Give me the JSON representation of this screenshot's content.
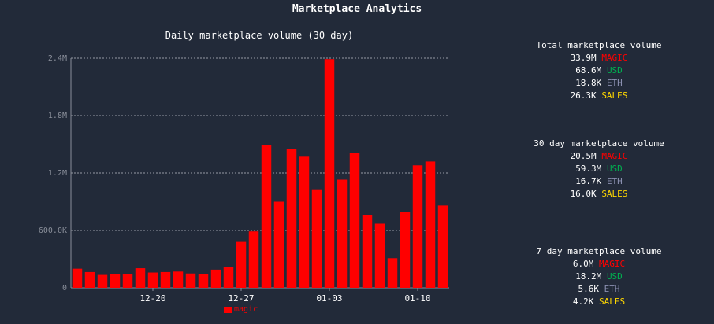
{
  "page_title": "Marketplace Analytics",
  "colors": {
    "background": "#222a39",
    "bar": "#ff0000",
    "magic": "#ff0000",
    "usd": "#00b050",
    "eth": "#8a8fb0",
    "sales": "#ffd700"
  },
  "chart_data": {
    "type": "bar",
    "title": "Daily marketplace volume (30 day)",
    "xlabel": "",
    "ylabel": "",
    "ylim": [
      0,
      2400000
    ],
    "y_ticks": [
      0,
      600000,
      1200000,
      1800000,
      2400000
    ],
    "y_tick_labels": [
      "0",
      "600.0K",
      "1.2M",
      "1.8M",
      "2.4M"
    ],
    "x_tick_labels": [
      {
        "label": "12-20",
        "index": 6
      },
      {
        "label": "12-27",
        "index": 13
      },
      {
        "label": "01-03",
        "index": 20
      },
      {
        "label": "01-10",
        "index": 27
      }
    ],
    "grid": true,
    "legend_position": "bottom",
    "series": [
      {
        "name": "magic",
        "color": "#ff0000",
        "values": [
          200000,
          165000,
          135000,
          140000,
          140000,
          205000,
          160000,
          165000,
          170000,
          150000,
          140000,
          190000,
          215000,
          480000,
          590000,
          1490000,
          900000,
          1450000,
          1370000,
          1030000,
          2390000,
          1130000,
          1410000,
          760000,
          670000,
          310000,
          790000,
          1280000,
          1320000,
          860000
        ]
      }
    ]
  },
  "stats": [
    {
      "title": "Total marketplace volume",
      "lines": [
        {
          "value": "33.9M",
          "unit": "MAGIC",
          "kind": "magic"
        },
        {
          "value": "68.6M",
          "unit": "USD",
          "kind": "usd"
        },
        {
          "value": "18.8K",
          "unit": "ETH",
          "kind": "eth"
        },
        {
          "value": "26.3K",
          "unit": "SALES",
          "kind": "sales"
        }
      ]
    },
    {
      "title": "30 day marketplace volume",
      "lines": [
        {
          "value": "20.5M",
          "unit": "MAGIC",
          "kind": "magic"
        },
        {
          "value": "59.3M",
          "unit": "USD",
          "kind": "usd"
        },
        {
          "value": "16.7K",
          "unit": "ETH",
          "kind": "eth"
        },
        {
          "value": "16.0K",
          "unit": "SALES",
          "kind": "sales"
        }
      ]
    },
    {
      "title": "7 day marketplace volume",
      "lines": [
        {
          "value": "6.0M",
          "unit": "MAGIC",
          "kind": "magic"
        },
        {
          "value": "18.2M",
          "unit": "USD",
          "kind": "usd"
        },
        {
          "value": "5.6K",
          "unit": "ETH",
          "kind": "eth"
        },
        {
          "value": "4.2K",
          "unit": "SALES",
          "kind": "sales"
        }
      ]
    }
  ]
}
